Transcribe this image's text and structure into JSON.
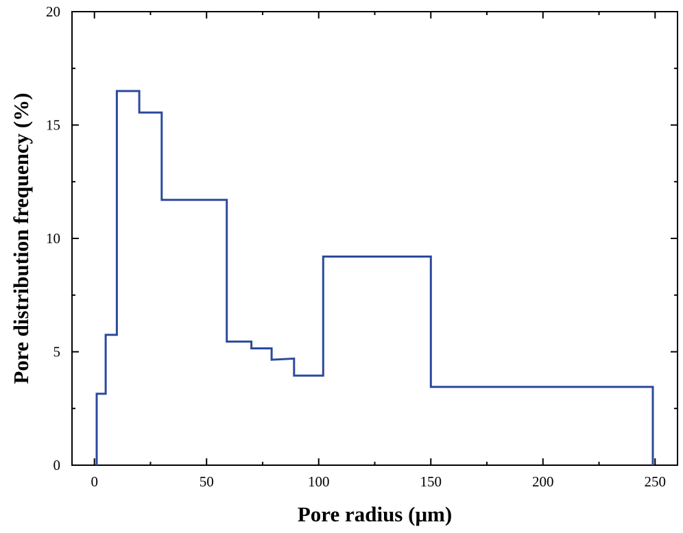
{
  "chart_data": {
    "type": "line",
    "style": "step",
    "title": "",
    "xlabel": "Pore radius (μm)",
    "ylabel": "Pore distribution frequency (%)",
    "xlim": [
      -10,
      260
    ],
    "ylim": [
      0,
      20
    ],
    "x_ticks": [
      0,
      50,
      100,
      150,
      200,
      250
    ],
    "x_tick_labels": [
      "0",
      "50",
      "100",
      "150",
      "200",
      "250"
    ],
    "x_minor_ticks": [
      25,
      75,
      125,
      175,
      225
    ],
    "y_ticks": [
      0,
      5,
      10,
      15,
      20
    ],
    "y_tick_labels": [
      "0",
      "5",
      "10",
      "15",
      "20"
    ],
    "y_minor_ticks": [
      2.5,
      7.5,
      12.5,
      17.5
    ],
    "grid": false,
    "line_color": "#2b4a9c",
    "series": [
      {
        "name": "Pore distribution frequency",
        "x": [
          1,
          1,
          5,
          5,
          10,
          10,
          20,
          20,
          30,
          30,
          59,
          59,
          70,
          70,
          79,
          79,
          89,
          89,
          102,
          102,
          150,
          150,
          249,
          249
        ],
        "y": [
          0,
          3.15,
          3.15,
          5.75,
          5.75,
          16.5,
          16.5,
          15.55,
          15.55,
          11.7,
          11.7,
          5.45,
          5.45,
          5.15,
          5.15,
          4.65,
          4.7,
          3.95,
          3.95,
          9.2,
          9.2,
          3.45,
          3.45,
          0
        ]
      }
    ]
  }
}
